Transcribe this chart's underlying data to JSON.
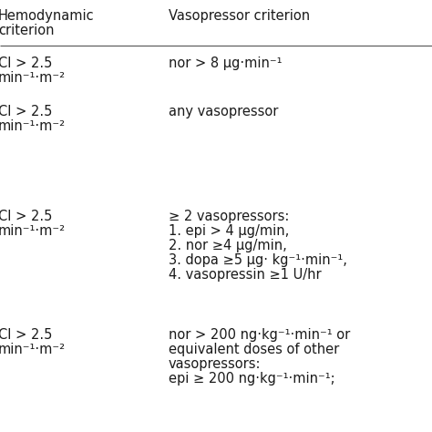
{
  "col1_header_line1": "Hemodynamic",
  "col1_header_line2": "criterion",
  "col2_header": "Vasopressor criterion",
  "rows": [
    {
      "col1_line1": "CI > 2.5",
      "col1_line2": "min⁻¹·m⁻²",
      "col2": "nor > 8 μg·min⁻¹",
      "col2_lines": [
        "nor > 8 μg·min⁻¹"
      ]
    },
    {
      "col1_line1": "CI > 2.5",
      "col1_line2": "min⁻¹·m⁻²",
      "col2": "any vasopressor",
      "col2_lines": [
        "any vasopressor"
      ]
    },
    {
      "col1_line1": "CI > 2.5",
      "col1_line2": "min⁻¹·m⁻²",
      "col2": "≥ 2 vasopressors:",
      "col2_lines": [
        "≥ 2 vasopressors:",
        "1. epi > 4 μg/min,",
        "2. nor ≥4 μg/min,",
        "3. dopa ≥5 μg· kg⁻¹·min⁻¹,",
        "4. vasopressin ≥1 U/hr"
      ]
    },
    {
      "col1_line1": "CI > 2.5",
      "col1_line2": "min⁻¹·m⁻²",
      "col2": "nor > 200 ng·kg⁻¹·min⁻¹ or",
      "col2_lines": [
        "nor > 200 ng·kg⁻¹·min⁻¹ or",
        "equivalent doses of other",
        "vasopressors:",
        "epi ≥ 200 ng·kg⁻¹·min⁻¹;"
      ]
    }
  ],
  "bg_color": "#ffffff",
  "text_color": "#1a1a1a",
  "line_color": "#555555",
  "font_size": 10.5,
  "fig_width": 4.74,
  "fig_height": 4.74,
  "dpi": 100
}
